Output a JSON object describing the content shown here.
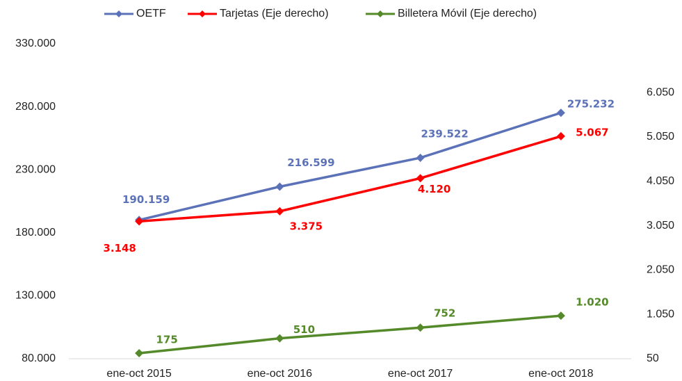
{
  "chart_data": {
    "type": "line",
    "categories": [
      "ene-oct 2015",
      "ene-oct 2016",
      "ene-oct 2017",
      "ene-oct 2018"
    ],
    "series": [
      {
        "name": "OETF",
        "color": "#5b72b8",
        "values": [
          190159,
          216599,
          239522,
          275232
        ],
        "value_labels": [
          "190.159",
          "216.599",
          "239.522",
          "275.232"
        ]
      },
      {
        "name": "Tarjetas  (Eje derecho)",
        "color": "#ff0000",
        "axis": "y2",
        "values": [
          3148,
          3375,
          4120,
          5067
        ],
        "value_labels": [
          "3.148",
          "3.375",
          "4.120",
          "5.067"
        ]
      },
      {
        "name": "Billetera Móvil  (Eje derecho)",
        "color": "#548a2a",
        "axis": "y2",
        "values": [
          175,
          510,
          752,
          1020
        ],
        "value_labels": [
          "175",
          "510",
          "752",
          "1.020"
        ]
      }
    ],
    "ylim": [
      80000,
      330000
    ],
    "yticks": [
      {
        "value": 80000,
        "label": "80.000"
      },
      {
        "value": 130000,
        "label": "130.000"
      },
      {
        "value": 180000,
        "label": "180.000"
      },
      {
        "value": 230000,
        "label": "230.000"
      },
      {
        "value": 280000,
        "label": "280.000"
      },
      {
        "value": 330000,
        "label": "330.000"
      }
    ],
    "y2lim": [
      50,
      7150
    ],
    "y2ticks": [
      50,
      {
        "value": 1050,
        "label": "1.050"
      },
      {
        "value": 2050,
        "label": "2.050"
      },
      {
        "value": 3050,
        "label": "3.050"
      },
      {
        "value": 4050,
        "label": "4.050"
      },
      {
        "value": 5050,
        "label": "5.050"
      },
      {
        "value": 6050,
        "label": "6.050"
      }
    ],
    "grid": false
  }
}
